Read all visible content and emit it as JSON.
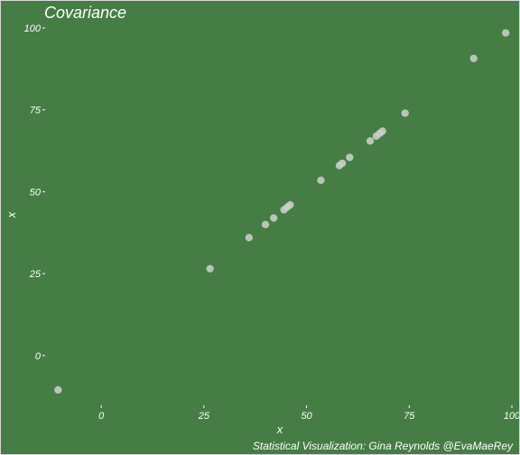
{
  "colors": {
    "background": "#457d45",
    "point": "#d0d0d0",
    "text": "#ffffff"
  },
  "chart_data": {
    "type": "scatter",
    "title": "Covariance",
    "caption": "Statistical Visualization: Gina Reynolds @EvaMaeRey",
    "xlabel": "x",
    "ylabel": "x",
    "xlim": [
      -13,
      100
    ],
    "ylim": [
      -13,
      100
    ],
    "x_ticks": [
      0,
      25,
      50,
      75,
      100
    ],
    "y_ticks": [
      0,
      25,
      50,
      75,
      100
    ],
    "grid": false,
    "legend": "none",
    "points": [
      {
        "x": -10.5,
        "y": -10.5
      },
      {
        "x": 26.5,
        "y": 26.5
      },
      {
        "x": 36,
        "y": 36
      },
      {
        "x": 40,
        "y": 40
      },
      {
        "x": 42,
        "y": 42
      },
      {
        "x": 44.5,
        "y": 44.5
      },
      {
        "x": 45.3,
        "y": 45.3
      },
      {
        "x": 46,
        "y": 46
      },
      {
        "x": 53.5,
        "y": 53.5
      },
      {
        "x": 58,
        "y": 58
      },
      {
        "x": 58.7,
        "y": 58.7
      },
      {
        "x": 60.5,
        "y": 60.5
      },
      {
        "x": 65.5,
        "y": 65.5
      },
      {
        "x": 67,
        "y": 67
      },
      {
        "x": 67.8,
        "y": 67.8
      },
      {
        "x": 68.5,
        "y": 68.5
      },
      {
        "x": 74,
        "y": 74
      },
      {
        "x": 90.7,
        "y": 90.7
      },
      {
        "x": 98.5,
        "y": 98.5
      }
    ]
  }
}
